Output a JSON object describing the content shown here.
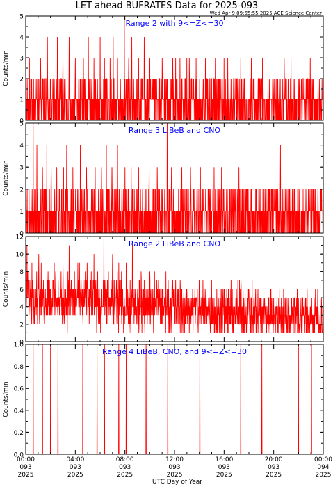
{
  "title": "LET ahead BUFRATES Data for 2025-093",
  "timestamp": "Wed Apr  9 09:55:55 2025 ACE Science Center",
  "xlabel": "UTC Day of Year",
  "colors": {
    "trace": "#ff0000",
    "panel_title": "#0000ff",
    "axes": "#000000",
    "background": "#ffffff"
  },
  "x_ticks": [
    {
      "hour": 0,
      "lines": [
        "00:00",
        "093",
        "2025"
      ]
    },
    {
      "hour": 4,
      "lines": [
        "04:00",
        "093",
        "2025"
      ]
    },
    {
      "hour": 8,
      "lines": [
        "08:00",
        "093",
        "2025"
      ]
    },
    {
      "hour": 12,
      "lines": [
        "12:00",
        "093",
        "2025"
      ]
    },
    {
      "hour": 16,
      "lines": [
        "16:00",
        "093",
        "2025"
      ]
    },
    {
      "hour": 20,
      "lines": [
        "20:00",
        "093",
        "2025"
      ]
    },
    {
      "hour": 24,
      "lines": [
        "00:00",
        "094",
        "2025"
      ]
    }
  ],
  "chart_data": [
    {
      "type": "line",
      "title": "Range 2 with 9<=Z<=30",
      "ylabel": "Counts/min",
      "xlim": [
        0,
        24
      ],
      "ylim": [
        0,
        5
      ],
      "yticks": [
        0,
        1,
        2,
        3,
        4,
        5
      ],
      "ytick_labels": [
        "0",
        "1",
        "2",
        "3",
        "4",
        "5"
      ],
      "data_summary": "counts per minute, mostly between 0 and 2 with occasional spikes to 3-5",
      "spikes": [
        [
          0.3,
          3
        ],
        [
          1.2,
          3
        ],
        [
          1.75,
          4
        ],
        [
          2.55,
          4
        ],
        [
          3.0,
          3
        ],
        [
          3.5,
          4
        ],
        [
          4.0,
          3
        ],
        [
          4.65,
          3
        ],
        [
          5.05,
          4
        ],
        [
          5.5,
          3
        ],
        [
          6.0,
          4
        ],
        [
          6.35,
          3
        ],
        [
          6.8,
          3
        ],
        [
          7.05,
          4
        ],
        [
          7.4,
          3
        ],
        [
          7.95,
          5
        ],
        [
          8.3,
          3
        ],
        [
          8.55,
          4
        ],
        [
          9.1,
          3
        ],
        [
          9.55,
          4
        ],
        [
          10.0,
          3
        ],
        [
          11.0,
          3
        ],
        [
          11.85,
          3
        ],
        [
          12.1,
          3
        ],
        [
          12.45,
          3
        ],
        [
          13.0,
          3
        ],
        [
          13.2,
          3
        ],
        [
          13.75,
          3
        ],
        [
          14.5,
          3
        ],
        [
          15.3,
          3
        ],
        [
          16.0,
          3
        ],
        [
          16.3,
          3
        ],
        [
          17.35,
          3
        ],
        [
          18.2,
          3
        ],
        [
          19.1,
          3
        ],
        [
          19.95,
          2
        ],
        [
          20.85,
          3
        ],
        [
          21.4,
          3
        ],
        [
          22.1,
          2
        ],
        [
          22.95,
          3
        ],
        [
          23.9,
          2
        ]
      ]
    },
    {
      "type": "line",
      "title": "Range 3 LiBeB and CNO",
      "ylabel": "Counts/min",
      "xlim": [
        0,
        24
      ],
      "ylim": [
        0,
        5
      ],
      "yticks": [
        0,
        1,
        2,
        3,
        4,
        5
      ],
      "ytick_labels": [
        "0",
        "1",
        "2",
        "3",
        "4",
        "5"
      ],
      "data_summary": "counts per minute, mostly between 0 and 2 with spikes to 3-5",
      "spikes": [
        [
          0.6,
          5
        ],
        [
          0.9,
          4
        ],
        [
          1.35,
          3
        ],
        [
          1.7,
          4
        ],
        [
          2.05,
          3
        ],
        [
          2.5,
          3
        ],
        [
          3.05,
          3
        ],
        [
          3.3,
          4
        ],
        [
          3.8,
          3
        ],
        [
          4.4,
          4
        ],
        [
          4.9,
          3
        ],
        [
          5.6,
          3
        ],
        [
          6.1,
          3
        ],
        [
          6.5,
          4
        ],
        [
          6.95,
          3
        ],
        [
          7.4,
          4
        ],
        [
          8.0,
          3
        ],
        [
          8.5,
          3
        ],
        [
          9.1,
          3
        ],
        [
          9.95,
          3
        ],
        [
          10.6,
          3
        ],
        [
          11.4,
          5
        ],
        [
          11.75,
          3
        ],
        [
          12.6,
          3
        ],
        [
          13.3,
          3
        ],
        [
          14.1,
          3
        ],
        [
          15.2,
          3
        ],
        [
          15.8,
          3
        ],
        [
          16.5,
          2
        ],
        [
          17.2,
          3
        ],
        [
          18.1,
          2
        ],
        [
          18.85,
          2
        ],
        [
          19.9,
          2
        ],
        [
          20.55,
          4
        ],
        [
          21.7,
          2
        ],
        [
          22.8,
          2
        ],
        [
          23.8,
          2
        ]
      ]
    },
    {
      "type": "line",
      "title": "Range 2 LiBeB and CNO",
      "ylabel": "Counts/min",
      "xlim": [
        0,
        24
      ],
      "ylim": [
        0,
        12
      ],
      "yticks": [
        0,
        2,
        4,
        6,
        8,
        10,
        12
      ],
      "ytick_labels": [
        "0",
        "2",
        "4",
        "6",
        "8",
        "10",
        "12"
      ],
      "data_summary": "noisy counts per minute, about 3-7 early in the day decreasing to about 1-4 late, peaks near 11-12",
      "spikes": [
        [
          0.1,
          11
        ],
        [
          0.5,
          9
        ],
        [
          1.05,
          10
        ],
        [
          1.8,
          8
        ],
        [
          2.3,
          9
        ],
        [
          3.0,
          9
        ],
        [
          3.5,
          11
        ],
        [
          4.2,
          9
        ],
        [
          4.8,
          8
        ],
        [
          5.5,
          10
        ],
        [
          6.3,
          12
        ],
        [
          7.0,
          10
        ],
        [
          7.5,
          9
        ],
        [
          8.1,
          9
        ],
        [
          8.6,
          11
        ],
        [
          9.3,
          8
        ],
        [
          10.0,
          8
        ],
        [
          10.7,
          7
        ],
        [
          11.3,
          8
        ],
        [
          12.1,
          7
        ],
        [
          13.0,
          6
        ],
        [
          14.0,
          7
        ],
        [
          15.0,
          7
        ],
        [
          16.0,
          6
        ],
        [
          17.0,
          6
        ],
        [
          18.0,
          6
        ],
        [
          19.0,
          5
        ],
        [
          20.0,
          5
        ],
        [
          21.0,
          5
        ],
        [
          22.0,
          5
        ],
        [
          23.0,
          4
        ],
        [
          23.85,
          5
        ]
      ]
    },
    {
      "type": "line",
      "title": "Range 4 LiBeB, CNO, and 9<=Z<=30",
      "ylabel": "Counts/min",
      "xlim": [
        0,
        24
      ],
      "ylim": [
        0,
        1
      ],
      "yticks": [
        0,
        0.2,
        0.4,
        0.6,
        0.8,
        1.0
      ],
      "ytick_labels": [
        "0.0",
        "0.2",
        "0.4",
        "0.6",
        "0.8",
        "1.0"
      ],
      "data_summary": "zero counts except single-minute events of 1",
      "events": [
        0.6,
        1.35,
        2.0,
        2.6,
        4.6,
        5.75,
        6.35,
        7.5,
        8.1,
        9.7,
        11.45,
        14.05,
        17.35,
        19.05,
        22.0,
        23.05
      ]
    }
  ]
}
